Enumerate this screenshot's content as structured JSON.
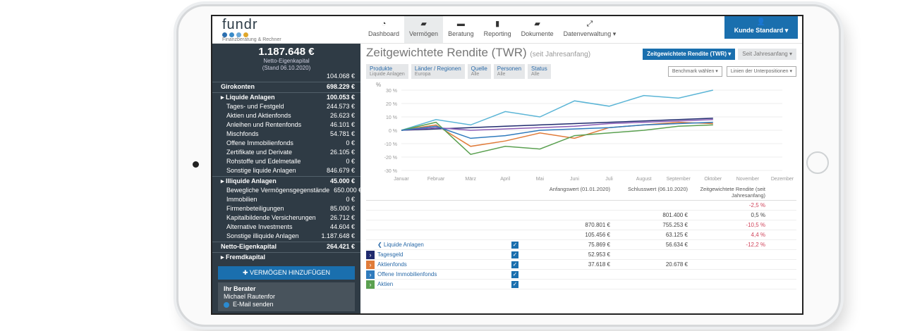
{
  "header": {
    "logo": "fundr",
    "logo_tagline": "Finanzberatung & Rechner",
    "logo_dot_colors": [
      "#2b6fb0",
      "#3a8bc8",
      "#6aa8d8",
      "#e0a72a"
    ],
    "nav": [
      {
        "label": "Dashboard",
        "icon": "dashboard-icon",
        "glyph": "◔"
      },
      {
        "label": "Vermögen",
        "icon": "wallet-icon",
        "glyph": "▰",
        "active": true
      },
      {
        "label": "Beratung",
        "icon": "chat-icon",
        "glyph": "▬"
      },
      {
        "label": "Reporting",
        "icon": "chart-icon",
        "glyph": "▮"
      },
      {
        "label": "Dokumente",
        "icon": "folder-icon",
        "glyph": "▰"
      },
      {
        "label": "Datenverwaltung ▾",
        "icon": "link-icon",
        "glyph": "⤢"
      }
    ],
    "user_button": "Kunde Standard ▾"
  },
  "sidebar": {
    "total": "1.187.648 €",
    "total_label": "Netto-Eigenkapital",
    "total_date": "(Stand 06.10.2020)",
    "rows": [
      {
        "label": "",
        "value": "104.068 €",
        "type": "sub"
      },
      {
        "label": "Girokonten",
        "value": "698.229 €",
        "type": "head"
      },
      {
        "label": "▸ Liquide Anlagen",
        "value": "100.053 €",
        "type": "head"
      },
      {
        "label": "Tages- und Festgeld",
        "value": "244.573 €",
        "type": "sub"
      },
      {
        "label": "Aktien und Aktienfonds",
        "value": "26.623 €",
        "type": "sub"
      },
      {
        "label": "Anleihen und Rentenfonds",
        "value": "46.101 €",
        "type": "sub"
      },
      {
        "label": "Mischfonds",
        "value": "54.781 €",
        "type": "sub"
      },
      {
        "label": "Offene Immobilienfonds",
        "value": "0 €",
        "type": "sub"
      },
      {
        "label": "Zertifikate und Derivate",
        "value": "26.105 €",
        "type": "sub"
      },
      {
        "label": "Rohstoffe und Edelmetalle",
        "value": "0 €",
        "type": "sub"
      },
      {
        "label": "Sonstige liquide Anlagen",
        "value": "846.679 €",
        "type": "sub"
      },
      {
        "label": "▸ Illiquide Anlagen",
        "value": "45.000 €",
        "type": "head"
      },
      {
        "label": "Bewegliche Vermögensgegenstände",
        "value": "650.000 €",
        "type": "sub"
      },
      {
        "label": "Immobilien",
        "value": "0 €",
        "type": "sub"
      },
      {
        "label": "Firmenbeteiligungen",
        "value": "85.000 €",
        "type": "sub"
      },
      {
        "label": "Kapitalbildende Versicherungen",
        "value": "26.712 €",
        "type": "sub"
      },
      {
        "label": "Alternative Investments",
        "value": "44.604 €",
        "type": "sub"
      },
      {
        "label": "Sonstige illiquide Anlagen",
        "value": "1.187.648 €",
        "type": "sub"
      },
      {
        "label": "Netto-Eigenkapital",
        "value": "264.421 €",
        "type": "head"
      },
      {
        "label": "▸ Fremdkapital",
        "value": "",
        "type": "head"
      }
    ],
    "add_button": "✚ VERMÖGEN HINZUFÜGEN",
    "advisor_heading": "Ihr Berater",
    "advisor_name": "Michael Rautenfor",
    "advisor_email": "E-Mail senden"
  },
  "main": {
    "title": "Zeitgewichtete Rendite (TWR)",
    "title_suffix": "(seit Jahresanfang)",
    "filters": [
      {
        "label": "Produkte",
        "value": "Liquide Anlagen"
      },
      {
        "label": "Länder / Regionen",
        "value": "Europa"
      },
      {
        "label": "Quelle",
        "value": "Alle"
      },
      {
        "label": "Personen",
        "value": "Alle"
      },
      {
        "label": "Status",
        "value": "Alle"
      }
    ],
    "mode_button": "Zeitgewichtete Rendite (TWR) ▾",
    "period_button": "Seit Jahresanfang ▾",
    "chart_type_select": "Linien der Unterpositionen ▾",
    "benchmark_select": "Benchmark wählen ▾",
    "chart": {
      "type": "line",
      "y_unit": "%",
      "ylim": [
        -30,
        30
      ],
      "y_ticks": [
        "30 %",
        "20 %",
        "10 %",
        "0 %",
        "-10 %",
        "-20 %",
        "-30 %"
      ],
      "categories": [
        "Januar",
        "Februar",
        "März",
        "April",
        "Mai",
        "Juni",
        "Juli",
        "August",
        "September",
        "Oktober",
        "November",
        "Dezember"
      ],
      "series": [
        {
          "color": "#5bb5d6",
          "values": [
            0,
            8,
            4,
            14,
            10,
            22,
            18,
            26,
            24,
            30
          ]
        },
        {
          "color": "#1f2a6e",
          "values": [
            0,
            1,
            2,
            3,
            4,
            5,
            6,
            7,
            8,
            9
          ]
        },
        {
          "color": "#8a5bb5",
          "values": [
            0,
            2,
            0,
            1,
            2,
            3,
            5,
            6,
            7,
            8
          ]
        },
        {
          "color": "#e07b39",
          "values": [
            0,
            4,
            -12,
            -8,
            -2,
            -6,
            2,
            4,
            6,
            5
          ]
        },
        {
          "color": "#5aa050",
          "values": [
            0,
            6,
            -18,
            -12,
            -14,
            -4,
            -2,
            0,
            3,
            4
          ]
        },
        {
          "color": "#2f7bbd",
          "values": [
            0,
            3,
            -6,
            -4,
            0,
            1,
            2,
            4,
            5,
            6
          ]
        }
      ]
    },
    "table": {
      "headers": [
        "Anfangswert (01.01.2020)",
        "Schlusswert (06.10.2020)",
        "Zeitgewichtete Rendite (seit Jahresanfang)"
      ],
      "rows": [
        {
          "name": "",
          "start": "",
          "end": "",
          "ret": "-2,5 %",
          "neg": true
        },
        {
          "name": "",
          "start": "",
          "end": "801.400 €",
          "ret": "0,5 %",
          "neg": false
        },
        {
          "name": "",
          "start": "870.801 €",
          "end": "755.253 €",
          "ret": "-10,5 %",
          "neg": true
        },
        {
          "name": "",
          "start": "105.456 €",
          "end": "63.125 €",
          "ret": "4,4 %",
          "neg": true
        },
        {
          "name": "❮ Liquide Anlagen",
          "start": "75.869 €",
          "end": "56.634 €",
          "ret": "-12,2 %",
          "neg": true,
          "check": true
        },
        {
          "name": "Tagesgeld",
          "start": "52.953 €",
          "end": "",
          "ret": "",
          "color": "#1f2a6e",
          "check": true
        },
        {
          "name": "Aktienfonds",
          "start": "37.618 €",
          "end": "20.678 €",
          "ret": "",
          "color": "#e07b39",
          "check": true
        },
        {
          "name": "Offene Immobilienfonds",
          "start": "",
          "end": "",
          "ret": "",
          "color": "#2f7bbd",
          "check": true
        },
        {
          "name": "Aktien",
          "start": "",
          "end": "",
          "ret": "",
          "color": "#5aa050",
          "check": true
        }
      ]
    }
  }
}
